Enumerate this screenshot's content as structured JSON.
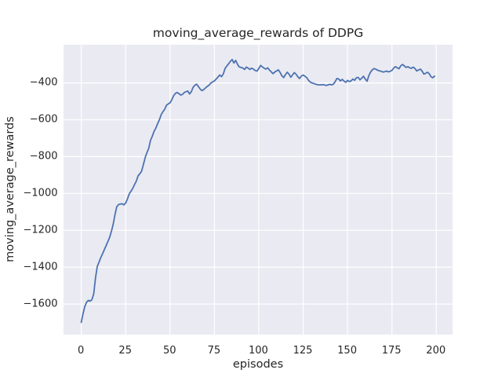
{
  "chart_data": {
    "type": "line",
    "title": "moving_average_rewards of DDPG",
    "xlabel": "episodes",
    "ylabel": "moving_average_rewards",
    "xlim": [
      -10,
      209.4
    ],
    "ylim": [
      -1766,
      -193
    ],
    "xticks": [
      0,
      25,
      50,
      75,
      100,
      125,
      150,
      175,
      200
    ],
    "yticks": [
      -400,
      -600,
      -800,
      -1000,
      -1200,
      -1400,
      -1600
    ],
    "grid": true,
    "legend": null,
    "colors": {
      "line": "#4c72b0",
      "plot_background": "#eaeaf2",
      "grid": "#ffffff",
      "figure_background": "#ffffff",
      "text": "#262626"
    },
    "series": [
      {
        "name": "moving_average_rewards",
        "x_start": 0,
        "x_step": 1,
        "y": [
          -1700,
          -1652,
          -1613,
          -1590,
          -1580,
          -1585,
          -1576,
          -1545,
          -1460,
          -1396,
          -1372,
          -1348,
          -1327,
          -1305,
          -1283,
          -1260,
          -1238,
          -1205,
          -1165,
          -1115,
          -1072,
          -1060,
          -1058,
          -1056,
          -1062,
          -1052,
          -1030,
          -1003,
          -988,
          -972,
          -952,
          -933,
          -905,
          -893,
          -878,
          -843,
          -805,
          -778,
          -755,
          -712,
          -690,
          -663,
          -645,
          -622,
          -600,
          -572,
          -556,
          -543,
          -521,
          -514,
          -508,
          -492,
          -470,
          -457,
          -452,
          -458,
          -466,
          -463,
          -452,
          -448,
          -444,
          -460,
          -448,
          -424,
          -412,
          -407,
          -420,
          -434,
          -442,
          -436,
          -427,
          -419,
          -412,
          -401,
          -394,
          -389,
          -379,
          -368,
          -357,
          -366,
          -351,
          -322,
          -308,
          -296,
          -283,
          -273,
          -292,
          -278,
          -299,
          -313,
          -316,
          -319,
          -327,
          -314,
          -320,
          -327,
          -320,
          -325,
          -333,
          -336,
          -322,
          -305,
          -313,
          -320,
          -325,
          -318,
          -330,
          -340,
          -350,
          -341,
          -335,
          -329,
          -343,
          -361,
          -371,
          -355,
          -342,
          -352,
          -369,
          -357,
          -344,
          -353,
          -367,
          -376,
          -363,
          -357,
          -364,
          -371,
          -386,
          -395,
          -400,
          -403,
          -407,
          -409,
          -411,
          -411,
          -409,
          -411,
          -414,
          -411,
          -408,
          -411,
          -407,
          -394,
          -376,
          -379,
          -389,
          -381,
          -390,
          -397,
          -386,
          -393,
          -389,
          -379,
          -386,
          -372,
          -370,
          -383,
          -374,
          -364,
          -379,
          -391,
          -361,
          -341,
          -328,
          -322,
          -326,
          -331,
          -335,
          -337,
          -341,
          -339,
          -336,
          -340,
          -337,
          -332,
          -319,
          -312,
          -318,
          -323,
          -307,
          -300,
          -308,
          -316,
          -312,
          -318,
          -321,
          -314,
          -322,
          -335,
          -330,
          -325,
          -336,
          -352,
          -348,
          -342,
          -350,
          -366,
          -372,
          -363
        ]
      }
    ]
  }
}
